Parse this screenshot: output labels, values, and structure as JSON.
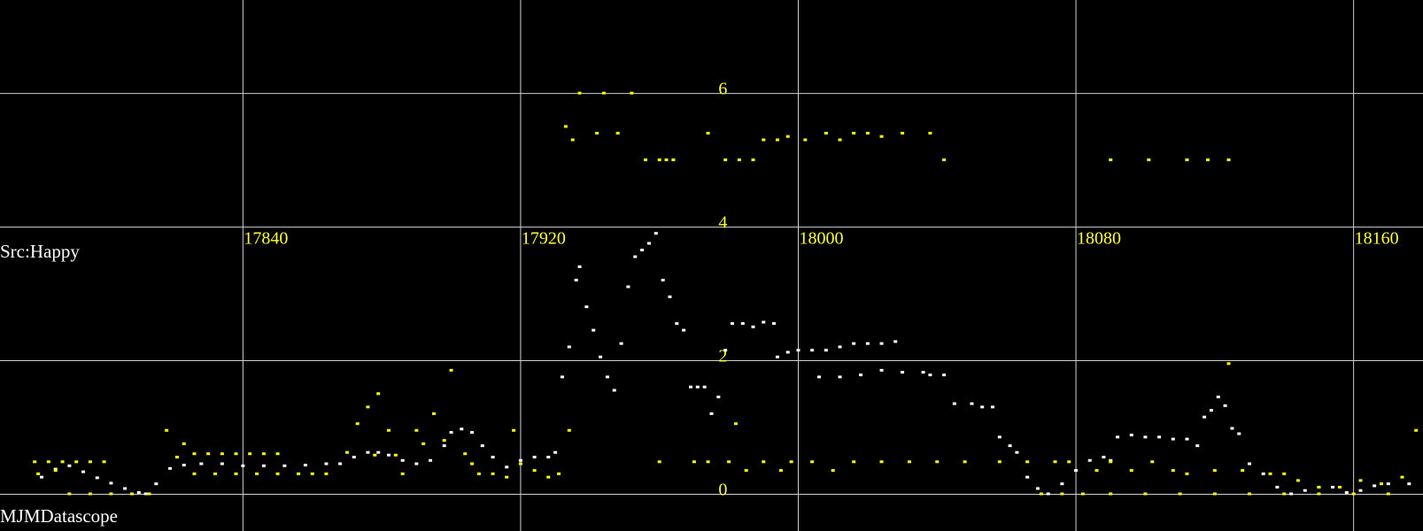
{
  "chart_data": {
    "type": "scatter",
    "title": "",
    "xlabel": "",
    "ylabel": "",
    "xlim": [
      17770,
      18180
    ],
    "ylim": [
      -0.55,
      7.4
    ],
    "x_ticks": [
      17840,
      17920,
      18000,
      18080,
      18160
    ],
    "y_ticks": [
      0,
      2,
      4,
      6
    ],
    "grid": true,
    "background": "#000000",
    "grid_color": "#d0d0d0",
    "tick_label_color": "#ffff33",
    "annotations": [
      "Src:Happy",
      "MJMDatascope"
    ],
    "series": [
      {
        "color": "#ffffff",
        "points": [
          [
            17782,
            0.25
          ],
          [
            17786,
            0.37
          ],
          [
            17790,
            0.42
          ],
          [
            17794,
            0.33
          ],
          [
            17798,
            0.24
          ],
          [
            17802,
            0.16
          ],
          [
            17806,
            0.08
          ],
          [
            17810,
            0.02
          ],
          [
            17812,
            0.0
          ],
          [
            17815,
            0.15
          ],
          [
            17819,
            0.38
          ],
          [
            17823,
            0.43
          ],
          [
            17828,
            0.45
          ],
          [
            17834,
            0.45
          ],
          [
            17840,
            0.42
          ],
          [
            17846,
            0.42
          ],
          [
            17852,
            0.42
          ],
          [
            17858,
            0.43
          ],
          [
            17864,
            0.45
          ],
          [
            17868,
            0.45
          ],
          [
            17872,
            0.55
          ],
          [
            17876,
            0.62
          ],
          [
            17879,
            0.62
          ],
          [
            17882,
            0.58
          ],
          [
            17886,
            0.5
          ],
          [
            17890,
            0.45
          ],
          [
            17894,
            0.5
          ],
          [
            17898,
            0.72
          ],
          [
            17900,
            0.92
          ],
          [
            17903,
            0.97
          ],
          [
            17906,
            0.92
          ],
          [
            17909,
            0.72
          ],
          [
            17912,
            0.55
          ],
          [
            17916,
            0.4
          ],
          [
            17920,
            0.5
          ],
          [
            17924,
            0.55
          ],
          [
            17928,
            0.55
          ],
          [
            17930,
            0.62
          ],
          [
            17932,
            1.75
          ],
          [
            17934,
            2.2
          ],
          [
            17936,
            3.2
          ],
          [
            17937,
            3.4
          ],
          [
            17939,
            2.8
          ],
          [
            17941,
            2.45
          ],
          [
            17943,
            2.05
          ],
          [
            17945,
            1.75
          ],
          [
            17947,
            1.55
          ],
          [
            17949,
            2.25
          ],
          [
            17951,
            3.1
          ],
          [
            17953,
            3.55
          ],
          [
            17955,
            3.65
          ],
          [
            17957,
            3.75
          ],
          [
            17959,
            3.9
          ],
          [
            17961,
            3.2
          ],
          [
            17963,
            2.95
          ],
          [
            17965,
            2.55
          ],
          [
            17967,
            2.45
          ],
          [
            17969,
            1.6
          ],
          [
            17971,
            1.6
          ],
          [
            17973,
            1.6
          ],
          [
            17975,
            1.2
          ],
          [
            17977,
            1.45
          ],
          [
            17979,
            2.15
          ],
          [
            17981,
            2.55
          ],
          [
            17984,
            2.55
          ],
          [
            17987,
            2.5
          ],
          [
            17990,
            2.57
          ],
          [
            17993,
            2.55
          ],
          [
            17994,
            2.05
          ],
          [
            17997,
            2.12
          ],
          [
            18000,
            2.15
          ],
          [
            18004,
            2.15
          ],
          [
            18008,
            2.15
          ],
          [
            18012,
            2.2
          ],
          [
            18016,
            2.25
          ],
          [
            18020,
            2.25
          ],
          [
            18024,
            2.25
          ],
          [
            18028,
            2.28
          ],
          [
            18006,
            1.75
          ],
          [
            18012,
            1.75
          ],
          [
            18018,
            1.78
          ],
          [
            18024,
            1.85
          ],
          [
            18030,
            1.82
          ],
          [
            18036,
            1.82
          ],
          [
            18038,
            1.78
          ],
          [
            18042,
            1.78
          ],
          [
            18045,
            1.35
          ],
          [
            18050,
            1.35
          ],
          [
            18053,
            1.3
          ],
          [
            18056,
            1.3
          ],
          [
            18058,
            0.85
          ],
          [
            18061,
            0.72
          ],
          [
            18063,
            0.62
          ],
          [
            18066,
            0.25
          ],
          [
            18069,
            0.08
          ],
          [
            18072,
            0.0
          ],
          [
            18076,
            0.15
          ],
          [
            18080,
            0.35
          ],
          [
            18084,
            0.5
          ],
          [
            18088,
            0.55
          ],
          [
            18090,
            0.5
          ],
          [
            18092,
            0.85
          ],
          [
            18096,
            0.88
          ],
          [
            18100,
            0.85
          ],
          [
            18104,
            0.85
          ],
          [
            18108,
            0.82
          ],
          [
            18112,
            0.82
          ],
          [
            18115,
            0.72
          ],
          [
            18117,
            1.15
          ],
          [
            18119,
            1.25
          ],
          [
            18121,
            1.45
          ],
          [
            18123,
            1.32
          ],
          [
            18125,
            0.98
          ],
          [
            18127,
            0.9
          ],
          [
            18130,
            0.45
          ],
          [
            18134,
            0.3
          ],
          [
            18138,
            0.1
          ],
          [
            18142,
            0.0
          ],
          [
            18146,
            0.05
          ],
          [
            18150,
            0.1
          ],
          [
            18154,
            0.1
          ],
          [
            18158,
            0.02
          ],
          [
            18162,
            0.05
          ],
          [
            18166,
            0.12
          ],
          [
            18170,
            0.15
          ],
          [
            18176,
            0.15
          ]
        ]
      },
      {
        "color": "#ffff00",
        "points": [
          [
            17780,
            0.48
          ],
          [
            17784,
            0.48
          ],
          [
            17788,
            0.48
          ],
          [
            17792,
            0.48
          ],
          [
            17796,
            0.48
          ],
          [
            17800,
            0.48
          ],
          [
            17781,
            0.3
          ],
          [
            17786,
            0.35
          ],
          [
            17790,
            0.0
          ],
          [
            17796,
            0.0
          ],
          [
            17802,
            0.0
          ],
          [
            17808,
            0.0
          ],
          [
            17813,
            0.0
          ],
          [
            17818,
            0.95
          ],
          [
            17821,
            0.55
          ],
          [
            17823,
            0.75
          ],
          [
            17826,
            0.6
          ],
          [
            17830,
            0.6
          ],
          [
            17834,
            0.6
          ],
          [
            17838,
            0.6
          ],
          [
            17842,
            0.6
          ],
          [
            17846,
            0.6
          ],
          [
            17850,
            0.6
          ],
          [
            17826,
            0.3
          ],
          [
            17832,
            0.3
          ],
          [
            17838,
            0.3
          ],
          [
            17844,
            0.3
          ],
          [
            17850,
            0.3
          ],
          [
            17856,
            0.3
          ],
          [
            17860,
            0.3
          ],
          [
            17864,
            0.3
          ],
          [
            17870,
            0.62
          ],
          [
            17873,
            1.05
          ],
          [
            17876,
            1.3
          ],
          [
            17879,
            1.5
          ],
          [
            17878,
            0.58
          ],
          [
            17882,
            0.95
          ],
          [
            17884,
            0.58
          ],
          [
            17886,
            0.3
          ],
          [
            17890,
            0.95
          ],
          [
            17892,
            0.75
          ],
          [
            17895,
            1.2
          ],
          [
            17898,
            0.8
          ],
          [
            17900,
            1.85
          ],
          [
            17904,
            0.6
          ],
          [
            17906,
            0.45
          ],
          [
            17908,
            0.3
          ],
          [
            17912,
            0.3
          ],
          [
            17916,
            0.25
          ],
          [
            17918,
            0.95
          ],
          [
            17920,
            0.45
          ],
          [
            17924,
            0.35
          ],
          [
            17928,
            0.25
          ],
          [
            17931,
            0.3
          ],
          [
            17934,
            0.95
          ],
          [
            17933,
            5.5
          ],
          [
            17935,
            5.3
          ],
          [
            17937,
            6.0
          ],
          [
            17942,
            5.4
          ],
          [
            17944,
            6.0
          ],
          [
            17948,
            5.4
          ],
          [
            17952,
            6.0
          ],
          [
            17956,
            5.0
          ],
          [
            17960,
            5.0
          ],
          [
            17962,
            5.0
          ],
          [
            17964,
            5.0
          ],
          [
            17974,
            5.4
          ],
          [
            17979,
            5.0
          ],
          [
            17983,
            5.0
          ],
          [
            17987,
            5.0
          ],
          [
            17990,
            5.3
          ],
          [
            17994,
            5.3
          ],
          [
            17997,
            5.35
          ],
          [
            18002,
            5.3
          ],
          [
            18008,
            5.4
          ],
          [
            18012,
            5.3
          ],
          [
            18016,
            5.4
          ],
          [
            18020,
            5.4
          ],
          [
            18024,
            5.35
          ],
          [
            18030,
            5.4
          ],
          [
            18038,
            5.4
          ],
          [
            18042,
            5.0
          ],
          [
            17960,
            0.48
          ],
          [
            17970,
            0.48
          ],
          [
            17980,
            0.48
          ],
          [
            17990,
            0.48
          ],
          [
            17998,
            0.48
          ],
          [
            18004,
            0.48
          ],
          [
            17985,
            0.35
          ],
          [
            17995,
            0.35
          ],
          [
            18010,
            0.35
          ],
          [
            18016,
            0.48
          ],
          [
            18024,
            0.48
          ],
          [
            18032,
            0.48
          ],
          [
            18040,
            0.48
          ],
          [
            18048,
            0.48
          ],
          [
            18058,
            0.48
          ],
          [
            18066,
            0.48
          ],
          [
            18074,
            0.48
          ],
          [
            18078,
            0.48
          ],
          [
            18086,
            0.35
          ],
          [
            18090,
            0.48
          ],
          [
            18096,
            0.35
          ],
          [
            18102,
            0.48
          ],
          [
            18108,
            0.35
          ],
          [
            18112,
            0.3
          ],
          [
            18120,
            0.35
          ],
          [
            18128,
            0.35
          ],
          [
            18136,
            0.3
          ],
          [
            18140,
            0.3
          ],
          [
            18144,
            0.2
          ],
          [
            18150,
            0.1
          ],
          [
            18156,
            0.1
          ],
          [
            18162,
            0.2
          ],
          [
            18168,
            0.15
          ],
          [
            18174,
            0.25
          ],
          [
            18178,
            0.95
          ],
          [
            18070,
            0.0
          ],
          [
            18076,
            0.0
          ],
          [
            18082,
            0.0
          ],
          [
            18090,
            0.0
          ],
          [
            18100,
            0.0
          ],
          [
            18110,
            0.0
          ],
          [
            18120,
            0.0
          ],
          [
            18130,
            0.0
          ],
          [
            18140,
            0.0
          ],
          [
            18150,
            0.0
          ],
          [
            18160,
            0.0
          ],
          [
            18170,
            0.0
          ],
          [
            18090,
            5.0
          ],
          [
            18101,
            5.0
          ],
          [
            18112,
            5.0
          ],
          [
            18118,
            5.0
          ],
          [
            18124,
            5.0
          ],
          [
            18124,
            1.95
          ],
          [
            17982,
            1.05
          ],
          [
            17974,
            0.48
          ]
        ]
      }
    ]
  }
}
